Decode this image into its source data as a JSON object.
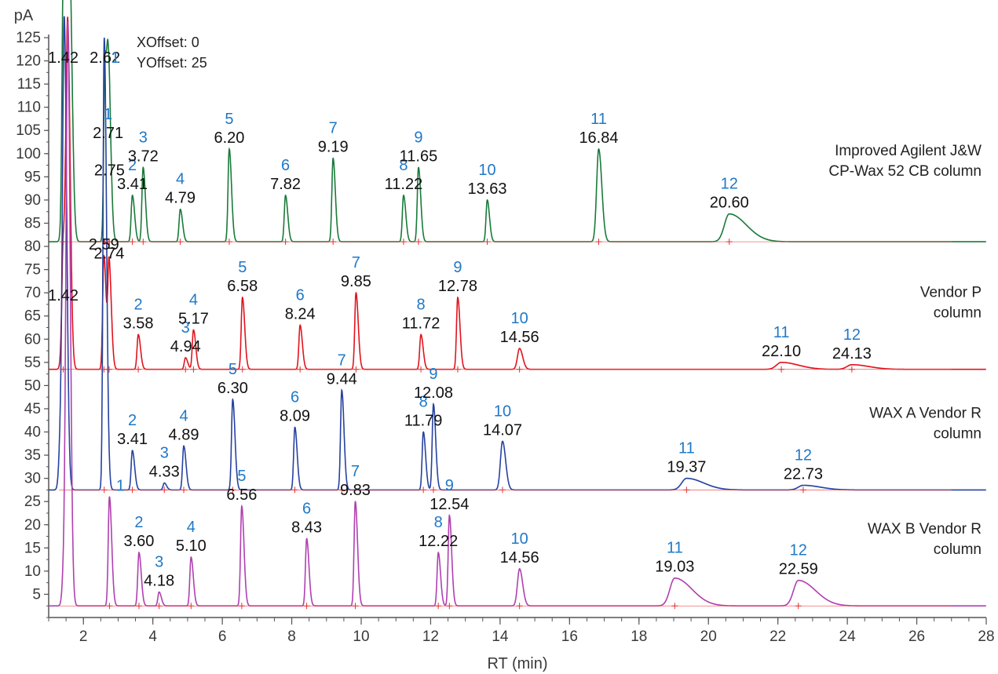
{
  "chart_data": {
    "type": "line",
    "xlabel": "RT (min)",
    "ylabel": "pA",
    "xlim": [
      1,
      28
    ],
    "ylim": [
      0,
      125
    ],
    "x_ticks": [
      2,
      4,
      6,
      8,
      10,
      12,
      14,
      16,
      18,
      20,
      22,
      24,
      26,
      28
    ],
    "y_ticks": [
      5,
      10,
      15,
      20,
      25,
      30,
      35,
      40,
      45,
      50,
      55,
      60,
      65,
      70,
      75,
      80,
      85,
      90,
      95,
      100,
      105,
      110,
      115,
      120,
      125
    ],
    "offset_note": [
      "XOffset: 0",
      "YOffset: 25"
    ],
    "grid": false,
    "series": [
      {
        "name": "Improved Agilent J&W CP-Wax 52 CB column",
        "name_lines": [
          "Improved Agilent J&W",
          "CP-Wax 52 CB column"
        ],
        "color": "#1a7a3a",
        "baseline": 81,
        "solvent": [
          [
            1.42,
            92
          ],
          [
            1.52,
            125
          ],
          [
            1.62,
            125
          ]
        ],
        "peaks": [
          {
            "num": "",
            "rt": "1.42",
            "x": 1.42,
            "y": 125
          },
          {
            "num": "1",
            "rt": "2.71",
            "x": 2.71,
            "y": 102
          },
          {
            "num": "",
            "rt": "2.62",
            "x": 2.62,
            "y": 121
          },
          {
            "num": "",
            "rt": "2.75",
            "x": 2.75,
            "y": 94
          },
          {
            "num": "2",
            "rt": "3.41",
            "x": 3.41,
            "y": 91
          },
          {
            "num": "3",
            "rt": "3.72",
            "x": 3.72,
            "y": 97
          },
          {
            "num": "4",
            "rt": "4.79",
            "x": 4.79,
            "y": 88
          },
          {
            "num": "5",
            "rt": "6.20",
            "x": 6.2,
            "y": 101
          },
          {
            "num": "6",
            "rt": "7.82",
            "x": 7.82,
            "y": 91
          },
          {
            "num": "7",
            "rt": "9.19",
            "x": 9.19,
            "y": 99
          },
          {
            "num": "8",
            "rt": "11.22",
            "x": 11.22,
            "y": 91
          },
          {
            "num": "9",
            "rt": "11.65",
            "x": 11.65,
            "y": 97
          },
          {
            "num": "10",
            "rt": "13.63",
            "x": 13.63,
            "y": 90
          },
          {
            "num": "11",
            "rt": "16.84",
            "x": 16.84,
            "y": 101
          },
          {
            "num": "12",
            "rt": "20.60",
            "x": 20.6,
            "y": 87
          }
        ]
      },
      {
        "name": "Vendor P column",
        "name_lines": [
          "Vendor P",
          "column"
        ],
        "color": "#e0141e",
        "baseline": 53.5,
        "solvent": [
          [
            1.42,
            67
          ],
          [
            1.55,
            125
          ]
        ],
        "peaks": [
          {
            "num": "",
            "rt": "1.42",
            "x": 1.42,
            "y": 67
          },
          {
            "num": "",
            "rt": "2.59",
            "x": 2.59,
            "y": 78
          },
          {
            "num": "",
            "rt": "2.74",
            "x": 2.74,
            "y": 76
          },
          {
            "num": "2",
            "rt": "3.58",
            "x": 3.58,
            "y": 61
          },
          {
            "num": "3",
            "rt": "4.94",
            "x": 4.94,
            "y": 56
          },
          {
            "num": "4",
            "rt": "5.17",
            "x": 5.17,
            "y": 62
          },
          {
            "num": "5",
            "rt": "6.58",
            "x": 6.58,
            "y": 69
          },
          {
            "num": "6",
            "rt": "8.24",
            "x": 8.24,
            "y": 63
          },
          {
            "num": "7",
            "rt": "9.85",
            "x": 9.85,
            "y": 70
          },
          {
            "num": "8",
            "rt": "11.72",
            "x": 11.72,
            "y": 61
          },
          {
            "num": "9",
            "rt": "12.78",
            "x": 12.78,
            "y": 69
          },
          {
            "num": "10",
            "rt": "14.56",
            "x": 14.56,
            "y": 58
          },
          {
            "num": "11",
            "rt": "22.10",
            "x": 22.1,
            "y": 55
          },
          {
            "num": "12",
            "rt": "24.13",
            "x": 24.13,
            "y": 54.5
          }
        ]
      },
      {
        "name": "WAX A Vendor R column",
        "name_lines": [
          "WAX A Vendor R",
          "column"
        ],
        "color": "#2642a0",
        "baseline": 27.5,
        "solvent": [
          [
            1.35,
            40
          ],
          [
            1.45,
            125
          ]
        ],
        "peaks": [
          {
            "num": "1",
            "rt": "",
            "x": 2.6,
            "y": 125
          },
          {
            "num": "2",
            "rt": "3.41",
            "x": 3.41,
            "y": 36
          },
          {
            "num": "3",
            "rt": "4.33",
            "x": 4.33,
            "y": 29
          },
          {
            "num": "4",
            "rt": "4.89",
            "x": 4.89,
            "y": 37
          },
          {
            "num": "5",
            "rt": "6.30",
            "x": 6.3,
            "y": 47
          },
          {
            "num": "6",
            "rt": "8.09",
            "x": 8.09,
            "y": 41
          },
          {
            "num": "7",
            "rt": "9.44",
            "x": 9.44,
            "y": 49
          },
          {
            "num": "8",
            "rt": "11.79",
            "x": 11.79,
            "y": 40
          },
          {
            "num": "9",
            "rt": "12.08",
            "x": 12.08,
            "y": 46
          },
          {
            "num": "10",
            "rt": "14.07",
            "x": 14.07,
            "y": 38
          },
          {
            "num": "11",
            "rt": "19.37",
            "x": 19.37,
            "y": 30
          },
          {
            "num": "12",
            "rt": "22.73",
            "x": 22.73,
            "y": 28.5
          }
        ]
      },
      {
        "name": "WAX B Vendor R column",
        "name_lines": [
          "WAX B Vendor R",
          "column"
        ],
        "color": "#b040b0",
        "baseline": 2.5,
        "solvent": [
          [
            1.45,
            12
          ],
          [
            1.55,
            125
          ]
        ],
        "peaks": [
          {
            "num": "1",
            "rt": "",
            "x": 2.75,
            "y": 26
          },
          {
            "num": "2",
            "rt": "3.60",
            "x": 3.6,
            "y": 14
          },
          {
            "num": "3",
            "rt": "4.18",
            "x": 4.18,
            "y": 5.5
          },
          {
            "num": "4",
            "rt": "5.10",
            "x": 5.1,
            "y": 13
          },
          {
            "num": "5",
            "rt": "6.56",
            "x": 6.56,
            "y": 24
          },
          {
            "num": "6",
            "rt": "8.43",
            "x": 8.43,
            "y": 17
          },
          {
            "num": "7",
            "rt": "9.83",
            "x": 9.83,
            "y": 25
          },
          {
            "num": "8",
            "rt": "12.22",
            "x": 12.22,
            "y": 14
          },
          {
            "num": "9",
            "rt": "12.54",
            "x": 12.54,
            "y": 22
          },
          {
            "num": "10",
            "rt": "14.56",
            "x": 14.56,
            "y": 10.5
          },
          {
            "num": "11",
            "rt": "19.03",
            "x": 19.03,
            "y": 8.5
          },
          {
            "num": "12",
            "rt": "22.59",
            "x": 22.59,
            "y": 8
          }
        ]
      }
    ]
  },
  "colors": {
    "axis": "#555555",
    "peak_number": "#1f78c8",
    "label": "#111111"
  }
}
